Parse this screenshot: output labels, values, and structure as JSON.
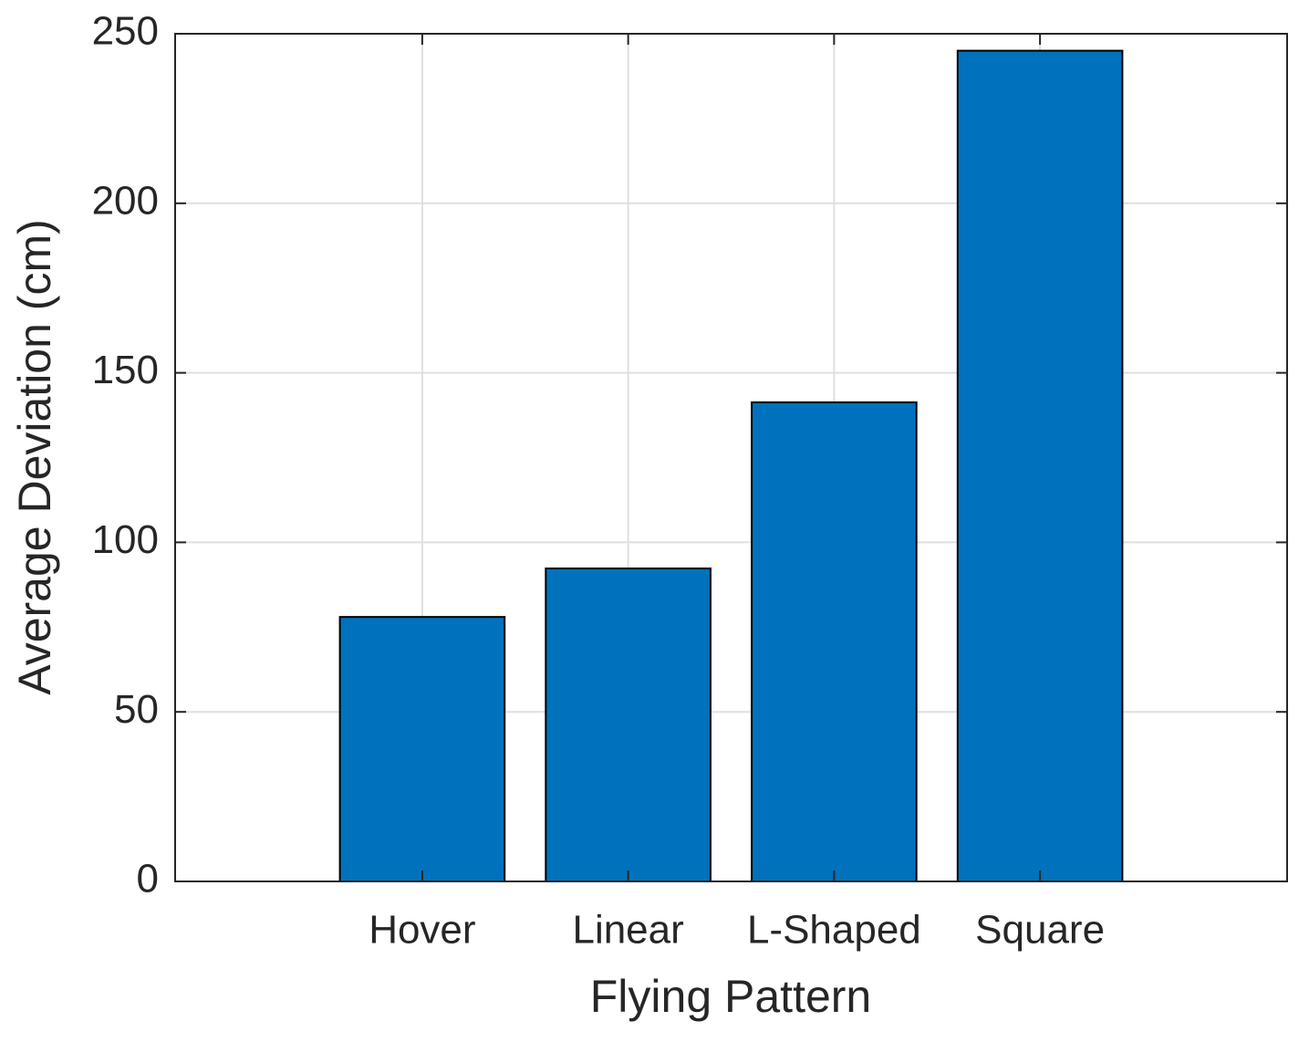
{
  "chart_data": {
    "type": "bar",
    "xlabel": "Flying Pattern",
    "ylabel": "Average Deviation (cm)",
    "categories": [
      "Hover",
      "Linear",
      "L-Shaped",
      "Square"
    ],
    "values": [
      78,
      92.3,
      141.3,
      245
    ],
    "color": "#0072bd",
    "ylim": [
      0,
      250
    ],
    "yticks": [
      0,
      50,
      100,
      150,
      200,
      250
    ],
    "grid": true
  }
}
